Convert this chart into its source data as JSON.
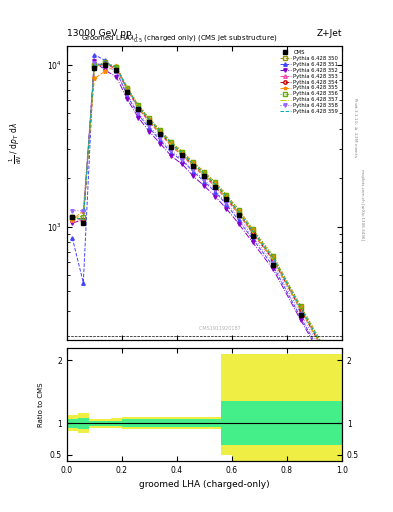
{
  "title_top": "13000 GeV pp",
  "title_right": "Z+Jet",
  "main_title": "Groomed LHA$\\lambda^1_{0.5}$ (charged only) (CMS jet substructure)",
  "xlabel": "groomed LHA (charged-only)",
  "ylabel_main_lines": [
    "mathrm d$^2$N",
    "mathrm d p$_T$ mathrm d lambda"
  ],
  "ylabel_ratio": "Ratio to CMS",
  "watermark": "CMS​1911920187",
  "x_bins": [
    0.0,
    0.04,
    0.08,
    0.12,
    0.16,
    0.2,
    0.24,
    0.28,
    0.32,
    0.36,
    0.4,
    0.44,
    0.48,
    0.52,
    0.56,
    0.6,
    0.65,
    0.7,
    0.8,
    0.9,
    1.0
  ],
  "cms_data": [
    1150,
    1050,
    9500,
    10000,
    9200,
    6800,
    5300,
    4400,
    3700,
    3100,
    2750,
    2350,
    2050,
    1750,
    1480,
    1180,
    880,
    580,
    285,
    140
  ],
  "pythia_curves": [
    {
      "label": "Pythia 6.428 350",
      "color": "#999900",
      "linestyle": "--",
      "marker": "s",
      "markerfacecolor": "none",
      "data": [
        1150,
        1100,
        9800,
        10200,
        9600,
        7100,
        5500,
        4550,
        3850,
        3250,
        2830,
        2430,
        2120,
        1820,
        1530,
        1230,
        930,
        630,
        310,
        155
      ]
    },
    {
      "label": "Pythia 6.428 351",
      "color": "#4444ff",
      "linestyle": "--",
      "marker": "^",
      "markerfacecolor": "#4444ff",
      "data": [
        850,
        450,
        11500,
        10600,
        9100,
        6400,
        4900,
        4050,
        3400,
        2850,
        2550,
        2180,
        1890,
        1630,
        1370,
        1090,
        840,
        570,
        275,
        138
      ]
    },
    {
      "label": "Pythia 6.428 352",
      "color": "#8800cc",
      "linestyle": "-.",
      "marker": "v",
      "markerfacecolor": "#8800cc",
      "data": [
        1050,
        1100,
        10500,
        9200,
        8400,
        6100,
        4700,
        3850,
        3250,
        2720,
        2420,
        2040,
        1780,
        1530,
        1290,
        1040,
        800,
        545,
        265,
        133
      ]
    },
    {
      "label": "Pythia 6.428 353",
      "color": "#ff44aa",
      "linestyle": "--",
      "marker": "^",
      "markerfacecolor": "none",
      "data": [
        1100,
        1100,
        9700,
        10100,
        9400,
        6950,
        5350,
        4400,
        3720,
        3130,
        2730,
        2340,
        2040,
        1750,
        1470,
        1190,
        910,
        620,
        305,
        153
      ]
    },
    {
      "label": "Pythia 6.428 354",
      "color": "#cc0000",
      "linestyle": "--",
      "marker": "o",
      "markerfacecolor": "none",
      "data": [
        1150,
        1100,
        9700,
        10100,
        9500,
        7050,
        5450,
        4480,
        3780,
        3180,
        2770,
        2380,
        2080,
        1780,
        1500,
        1210,
        920,
        625,
        308,
        154
      ]
    },
    {
      "label": "Pythia 6.428 355",
      "color": "#ff8800",
      "linestyle": "--",
      "marker": "*",
      "markerfacecolor": "#ff8800",
      "data": [
        1100,
        1250,
        8200,
        9100,
        9800,
        7200,
        5600,
        4640,
        3930,
        3310,
        2900,
        2490,
        2170,
        1870,
        1570,
        1270,
        960,
        655,
        323,
        162
      ]
    },
    {
      "label": "Pythia 6.428 356",
      "color": "#66aa00",
      "linestyle": ":",
      "marker": "s",
      "markerfacecolor": "none",
      "data": [
        1150,
        1150,
        9900,
        10300,
        9700,
        7200,
        5650,
        4650,
        3930,
        3310,
        2900,
        2490,
        2170,
        1870,
        1570,
        1270,
        970,
        660,
        325,
        163
      ]
    },
    {
      "label": "Pythia 6.428 357",
      "color": "#cccc00",
      "linestyle": "-.",
      "marker": "",
      "markerfacecolor": "none",
      "data": [
        1150,
        1100,
        9700,
        10100,
        9500,
        7050,
        5450,
        4480,
        3780,
        3180,
        2770,
        2380,
        2080,
        1780,
        1500,
        1210,
        920,
        625,
        308,
        154
      ]
    },
    {
      "label": "Pythia 6.428 358",
      "color": "#9966ff",
      "linestyle": ":",
      "marker": "v",
      "markerfacecolor": "#9966ff",
      "data": [
        1250,
        1250,
        10200,
        9900,
        9000,
        6550,
        5050,
        4160,
        3510,
        2950,
        2590,
        2220,
        1940,
        1670,
        1400,
        1140,
        870,
        595,
        290,
        146
      ]
    },
    {
      "label": "Pythia 6.428 359",
      "color": "#00aaaa",
      "linestyle": "--",
      "marker": "",
      "markerfacecolor": "none",
      "data": [
        1150,
        1100,
        9800,
        10200,
        9600,
        7100,
        5500,
        4550,
        3850,
        3250,
        2830,
        2430,
        2120,
        1820,
        1530,
        1230,
        940,
        640,
        315,
        158
      ]
    }
  ],
  "ratio_yellow_lo": [
    0.87,
    0.84,
    0.93,
    0.93,
    0.92,
    0.9,
    0.9,
    0.9,
    0.9,
    0.9,
    0.9,
    0.9,
    0.9,
    0.9,
    0.5,
    0.4,
    0.4,
    0.4,
    0.4,
    0.4
  ],
  "ratio_yellow_hi": [
    1.13,
    1.16,
    1.07,
    1.07,
    1.08,
    1.1,
    1.1,
    1.1,
    1.1,
    1.1,
    1.1,
    1.1,
    1.1,
    1.1,
    2.1,
    2.1,
    2.1,
    2.1,
    2.1,
    2.1
  ],
  "ratio_green_lo": [
    0.93,
    0.91,
    0.96,
    0.96,
    0.96,
    0.94,
    0.94,
    0.94,
    0.94,
    0.94,
    0.94,
    0.94,
    0.94,
    0.94,
    0.65,
    0.65,
    0.65,
    0.65,
    0.65,
    0.65
  ],
  "ratio_green_hi": [
    1.07,
    1.09,
    1.04,
    1.04,
    1.04,
    1.06,
    1.06,
    1.06,
    1.06,
    1.06,
    1.06,
    1.06,
    1.06,
    1.06,
    1.35,
    1.35,
    1.35,
    1.35,
    1.35,
    1.35
  ],
  "ylim_main_lo": 200,
  "ylim_main_hi": 13000,
  "ylim_ratio_lo": 0.4,
  "ylim_ratio_hi": 2.2,
  "bg_color": "#ffffff"
}
